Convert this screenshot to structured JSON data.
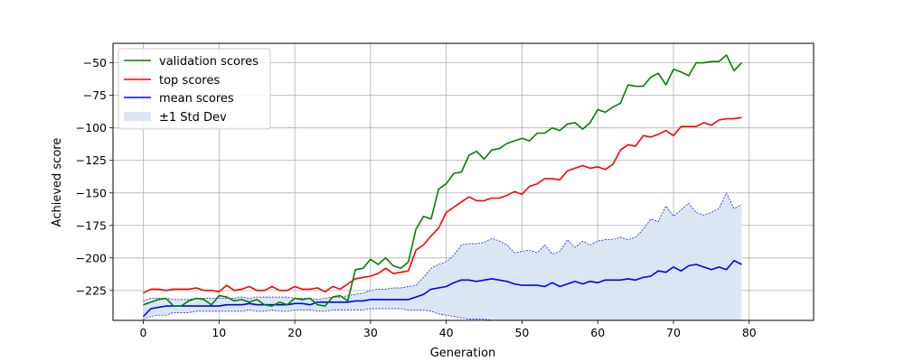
{
  "chart_data": {
    "type": "line",
    "xlabel": "Generation",
    "ylabel": "Achieved score",
    "xlim": [
      -4,
      88.5
    ],
    "ylim": [
      -248,
      -35
    ],
    "xticks": [
      0,
      10,
      20,
      30,
      40,
      50,
      60,
      70,
      80
    ],
    "yticks": [
      -225,
      -200,
      -175,
      -150,
      -125,
      -100,
      -75,
      -50
    ],
    "grid": true,
    "legend_position": "top-left",
    "colors": {
      "validation": "#008000",
      "top": "#ff0000",
      "mean": "#0000ff",
      "band_fill": "#dce6f2",
      "band_edge": "#0000ff",
      "grid": "#b0b0b0"
    },
    "x": [
      0,
      1,
      2,
      3,
      4,
      5,
      6,
      7,
      8,
      9,
      10,
      11,
      12,
      13,
      14,
      15,
      16,
      17,
      18,
      19,
      20,
      21,
      22,
      23,
      24,
      25,
      26,
      27,
      28,
      29,
      30,
      31,
      32,
      33,
      34,
      35,
      36,
      37,
      38,
      39,
      40,
      41,
      42,
      43,
      44,
      45,
      46,
      47,
      48,
      49,
      50,
      51,
      52,
      53,
      54,
      55,
      56,
      57,
      58,
      59,
      60,
      61,
      62,
      63,
      64,
      65,
      66,
      67,
      68,
      69,
      70,
      71,
      72,
      73,
      74,
      75,
      76,
      77,
      78,
      79
    ],
    "series": [
      {
        "name": "validation scores",
        "key": "validation",
        "values": [
          -236,
          -234,
          -232,
          -231,
          -237,
          -237,
          -233,
          -231,
          -232,
          -236,
          -229,
          -230,
          -233,
          -232,
          -234,
          -232,
          -236,
          -237,
          -234,
          -236,
          -231,
          -232,
          -231,
          -236,
          -237,
          -230,
          -229,
          -233,
          -209,
          -208,
          -201,
          -205,
          -200,
          -206,
          -208,
          -203,
          -178,
          -168,
          -170,
          -147,
          -143,
          -135,
          -134,
          -121,
          -118,
          -124,
          -117,
          -116,
          -112,
          -110,
          -108,
          -110,
          -104,
          -104,
          -100,
          -102,
          -97,
          -96,
          -101,
          -96,
          -86,
          -88,
          -84,
          -81,
          -67,
          -68,
          -68,
          -61,
          -58,
          -67,
          -55,
          -57,
          -60,
          -50,
          -50,
          -49,
          -49,
          -44,
          -56,
          -50
        ]
      },
      {
        "name": "top scores",
        "key": "top",
        "values": [
          -227,
          -224,
          -224,
          -225,
          -224,
          -224,
          -224,
          -223,
          -225,
          -225,
          -226,
          -221,
          -225,
          -224,
          -222,
          -225,
          -225,
          -222,
          -225,
          -225,
          -222,
          -224,
          -224,
          -223,
          -226,
          -222,
          -224,
          -220,
          -216,
          -215,
          -214,
          -212,
          -208,
          -212,
          -211,
          -210,
          -194,
          -190,
          -183,
          -177,
          -165,
          -161,
          -157,
          -153,
          -156,
          -156,
          -154,
          -154,
          -152,
          -149,
          -151,
          -145,
          -143,
          -139,
          -139,
          -140,
          -133,
          -131,
          -129,
          -131,
          -130,
          -132,
          -128,
          -117,
          -113,
          -114,
          -106,
          -107,
          -105,
          -102,
          -106,
          -99,
          -99,
          -99,
          -96,
          -98,
          -94,
          -93,
          -93,
          -92
        ]
      },
      {
        "name": "mean scores",
        "key": "mean",
        "values": [
          -245,
          -239,
          -238,
          -237,
          -237,
          -237,
          -237,
          -237,
          -237,
          -237,
          -237,
          -236,
          -236,
          -236,
          -235,
          -236,
          -236,
          -236,
          -236,
          -236,
          -235,
          -235,
          -236,
          -234,
          -234,
          -234,
          -234,
          -234,
          -233,
          -233,
          -232,
          -232,
          -232,
          -232,
          -232,
          -232,
          -230,
          -228,
          -224,
          -223,
          -222,
          -219,
          -217,
          -217,
          -218,
          -217,
          -216,
          -217,
          -218,
          -220,
          -221,
          -221,
          -221,
          -222,
          -219,
          -222,
          -220,
          -218,
          -220,
          -218,
          -219,
          -217,
          -217,
          -217,
          -216,
          -217,
          -215,
          -214,
          -210,
          -211,
          -207,
          -210,
          -206,
          -205,
          -207,
          -209,
          -207,
          -209,
          -202,
          -205
        ]
      }
    ],
    "band": {
      "name": "±1 Std Dev",
      "upper": [
        -233,
        -231,
        -231,
        -231,
        -232,
        -232,
        -232,
        -231,
        -231,
        -231,
        -231,
        -231,
        -231,
        -230,
        -231,
        -230,
        -230,
        -230,
        -230,
        -230,
        -231,
        -231,
        -231,
        -232,
        -231,
        -230,
        -230,
        -229,
        -228,
        -227,
        -225,
        -224,
        -224,
        -223,
        -223,
        -222,
        -221,
        -215,
        -208,
        -205,
        -203,
        -198,
        -190,
        -189,
        -189,
        -188,
        -185,
        -187,
        -190,
        -196,
        -195,
        -194,
        -196,
        -190,
        -197,
        -195,
        -186,
        -192,
        -187,
        -190,
        -187,
        -186,
        -186,
        -184,
        -186,
        -184,
        -178,
        -170,
        -172,
        -160,
        -168,
        -163,
        -158,
        -165,
        -167,
        -165,
        -162,
        -150,
        -162,
        -159
      ],
      "lower": [
        -247,
        -245,
        -244,
        -244,
        -242,
        -242,
        -242,
        -241,
        -241,
        -241,
        -241,
        -241,
        -241,
        -241,
        -240,
        -241,
        -241,
        -240,
        -241,
        -241,
        -240,
        -240,
        -240,
        -241,
        -241,
        -240,
        -240,
        -240,
        -240,
        -240,
        -239,
        -239,
        -239,
        -239,
        -239,
        -240,
        -240,
        -240,
        -241,
        -243,
        -244,
        -245,
        -246,
        -247,
        -247,
        -247,
        -248,
        -248,
        -248,
        -248,
        -248,
        -248,
        -248,
        -248,
        -248,
        -248,
        -248,
        -248,
        -248,
        -248,
        -248,
        -248,
        -248,
        -248,
        -248,
        -248,
        -248,
        -248,
        -248,
        -248,
        -248,
        -248,
        -248,
        -248,
        -248,
        -248,
        -248,
        -248,
        -248,
        -248
      ]
    }
  }
}
